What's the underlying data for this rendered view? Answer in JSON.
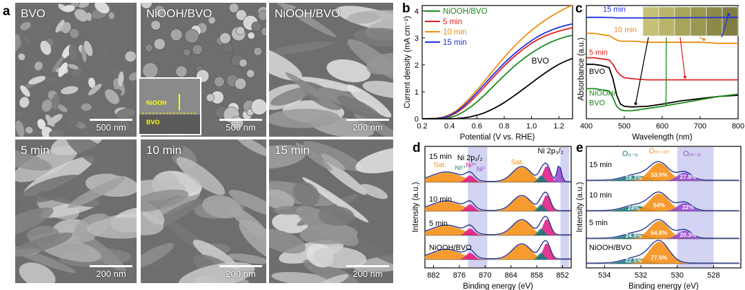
{
  "panel_labels": {
    "a": "a",
    "b": "b",
    "c": "c",
    "d": "d",
    "e": "e"
  },
  "sem_tiles": [
    {
      "label": "BVO",
      "scale": "500 nm"
    },
    {
      "label": "NiOOH/BVO",
      "scale": "500 nm"
    },
    {
      "label": "NiOOH/BVO",
      "scale": "200 nm"
    },
    {
      "label": "5 min",
      "scale": "200 nm"
    },
    {
      "label": "10 min",
      "scale": "200 nm"
    },
    {
      "label": "15 min",
      "scale": "200 nm"
    }
  ],
  "inset": {
    "top_label": "NiOOH",
    "bottom_label": "BVO"
  },
  "colors": {
    "green": "#1a8a1a",
    "red": "#e02020",
    "orange": "#f08c10",
    "blue": "#2030e0",
    "black": "#000000",
    "fill_orange": "#f5901a",
    "fill_magenta": "#e0208a",
    "fill_teal": "#1a7a7a",
    "fill_purple": "#9a4ad0",
    "shade": "#c8c8f0"
  },
  "chart_data": [
    {
      "type": "line",
      "id": "b",
      "title": "",
      "xlabel": "Potential (V vs. RHE)",
      "ylabel": "Current density (mA cm⁻²)",
      "xlim": [
        0.2,
        1.3
      ],
      "ylim": [
        0,
        4.2
      ],
      "xticks": [
        0.2,
        0.4,
        0.6,
        0.8,
        1.0,
        1.2
      ],
      "xtick_labels": [
        "0.2",
        "0.4",
        "0.6",
        "0.8",
        "1.0",
        "1.2"
      ],
      "yticks": [
        0,
        1,
        2,
        3,
        4
      ],
      "ytick_labels": [
        "0",
        "1",
        "2",
        "3",
        "4"
      ],
      "legend": [
        "NiOOH/BVO",
        "5 min",
        "10 min",
        "15 min"
      ],
      "annotation": "BVO",
      "x": [
        0.2,
        0.3,
        0.35,
        0.4,
        0.45,
        0.5,
        0.55,
        0.6,
        0.65,
        0.7,
        0.75,
        0.8,
        0.85,
        0.9,
        0.95,
        1.0,
        1.05,
        1.1,
        1.15,
        1.2,
        1.25,
        1.3
      ],
      "series": [
        {
          "name": "NiOOH/BVO",
          "color": "green",
          "values": [
            0,
            0,
            0.01,
            0.04,
            0.12,
            0.25,
            0.42,
            0.62,
            0.85,
            1.1,
            1.35,
            1.6,
            1.84,
            2.06,
            2.26,
            2.44,
            2.6,
            2.74,
            2.86,
            2.96,
            3.04,
            3.1
          ]
        },
        {
          "name": "5 min",
          "color": "red",
          "values": [
            0,
            0.01,
            0.03,
            0.1,
            0.22,
            0.4,
            0.62,
            0.88,
            1.15,
            1.43,
            1.7,
            1.96,
            2.2,
            2.42,
            2.62,
            2.8,
            2.95,
            3.07,
            3.17,
            3.25,
            3.32,
            3.38
          ]
        },
        {
          "name": "10 min",
          "color": "orange",
          "values": [
            0,
            0.02,
            0.06,
            0.15,
            0.3,
            0.52,
            0.78,
            1.06,
            1.36,
            1.67,
            1.98,
            2.28,
            2.56,
            2.82,
            3.06,
            3.28,
            3.48,
            3.66,
            3.82,
            3.97,
            4.1,
            4.22
          ]
        },
        {
          "name": "15 min",
          "color": "blue",
          "values": [
            0,
            0.01,
            0.04,
            0.12,
            0.26,
            0.46,
            0.7,
            0.97,
            1.25,
            1.53,
            1.8,
            2.06,
            2.3,
            2.52,
            2.72,
            2.9,
            3.06,
            3.19,
            3.3,
            3.39,
            3.46,
            3.52
          ]
        },
        {
          "name": "BVO",
          "color": "black",
          "values": [
            0,
            0,
            0,
            0,
            0.01,
            0.03,
            0.07,
            0.13,
            0.21,
            0.32,
            0.45,
            0.6,
            0.77,
            0.95,
            1.14,
            1.33,
            1.52,
            1.7,
            1.87,
            2.02,
            2.14,
            2.24
          ]
        }
      ]
    },
    {
      "type": "line",
      "id": "c",
      "xlabel": "Wavelength (nm)",
      "ylabel": "Absorbance (a.u.)",
      "xlim": [
        400,
        800
      ],
      "xticks": [
        400,
        500,
        600,
        700,
        800
      ],
      "xtick_labels": [
        "400",
        "500",
        "600",
        "700",
        "800"
      ],
      "curve_labels": [
        "15 min",
        "10 min",
        "5 min",
        "BVO",
        "NiOOH/",
        "BVO"
      ],
      "x": [
        400,
        420,
        440,
        460,
        470,
        480,
        490,
        500,
        520,
        560,
        600,
        650,
        700,
        750,
        800
      ],
      "series": [
        {
          "name": "15 min",
          "color": "blue",
          "values": [
            0.905,
            0.905,
            0.905,
            0.904,
            0.903,
            0.9,
            0.9,
            0.9,
            0.9,
            0.9,
            0.901,
            0.902,
            0.903,
            0.904,
            0.905
          ]
        },
        {
          "name": "10 min",
          "color": "orange",
          "values": [
            0.76,
            0.76,
            0.75,
            0.74,
            0.72,
            0.7,
            0.69,
            0.69,
            0.69,
            0.68,
            0.68,
            0.68,
            0.68,
            0.67,
            0.67
          ]
        },
        {
          "name": "5 min",
          "color": "red",
          "values": [
            0.54,
            0.54,
            0.53,
            0.52,
            0.48,
            0.42,
            0.38,
            0.36,
            0.35,
            0.34,
            0.34,
            0.34,
            0.34,
            0.34,
            0.34
          ]
        },
        {
          "name": "BVO",
          "color": "black",
          "values": [
            0.48,
            0.48,
            0.47,
            0.45,
            0.35,
            0.2,
            0.12,
            0.1,
            0.095,
            0.1,
            0.12,
            0.15,
            0.17,
            0.19,
            0.2
          ]
        },
        {
          "name": "NiOOH/BVO",
          "color": "green",
          "values": [
            0.26,
            0.26,
            0.25,
            0.24,
            0.18,
            0.1,
            0.07,
            0.06,
            0.06,
            0.08,
            0.1,
            0.13,
            0.16,
            0.19,
            0.21
          ]
        }
      ]
    },
    {
      "type": "area",
      "id": "d",
      "xlabel": "Binding energy (eV)",
      "ylabel": "Intensity (a.u.)",
      "xlim": [
        884,
        850
      ],
      "xticks": [
        882,
        876,
        870,
        864,
        858,
        852
      ],
      "xtick_labels": [
        "882",
        "876",
        "870",
        "864",
        "858",
        "852"
      ],
      "shade_ranges": [
        [
          874,
          869.5
        ],
        [
          852.5,
          850.5
        ]
      ],
      "peak_labels": {
        "sat1": "Sat.",
        "sat2": "Sat.",
        "ni3": "Ni³⁺",
        "ni2": "Ni²⁺",
        "ni0": "Ni⁰",
        "np12": "Ni 2p₁/₂",
        "np32": "Ni 2p₃/₂"
      },
      "series": [
        {
          "name": "15 min"
        },
        {
          "name": "10 min"
        },
        {
          "name": "5 min"
        },
        {
          "name": "NiOOH/BVO"
        }
      ]
    },
    {
      "type": "area",
      "id": "e",
      "xlabel": "Binding energy (eV)",
      "ylabel": "Intensity (a.u.)",
      "xlim": [
        535,
        526.5
      ],
      "xticks": [
        534,
        532,
        530,
        528
      ],
      "xtick_labels": [
        "534",
        "532",
        "530",
        "528"
      ],
      "shade_range": [
        530,
        528
      ],
      "component_labels": {
        "ooo": "Oₒ₋ₒ",
        "moh": "Oₘ₋ₒₕ",
        "mo": "Oₘ₋ₒ"
      },
      "series": [
        {
          "name": "15 min",
          "teal": "18.3%",
          "orange": "53.9%",
          "purple": "27.8%"
        },
        {
          "name": "10 min",
          "teal": "24%",
          "orange": "54%",
          "purple": "22%"
        },
        {
          "name": "5 min",
          "teal": "24.9%",
          "orange": "54.8%",
          "purple": "20.3%"
        },
        {
          "name": "NiOOH/BVO",
          "teal": "22.5%",
          "orange": "77.5%",
          "purple": ""
        }
      ]
    }
  ]
}
